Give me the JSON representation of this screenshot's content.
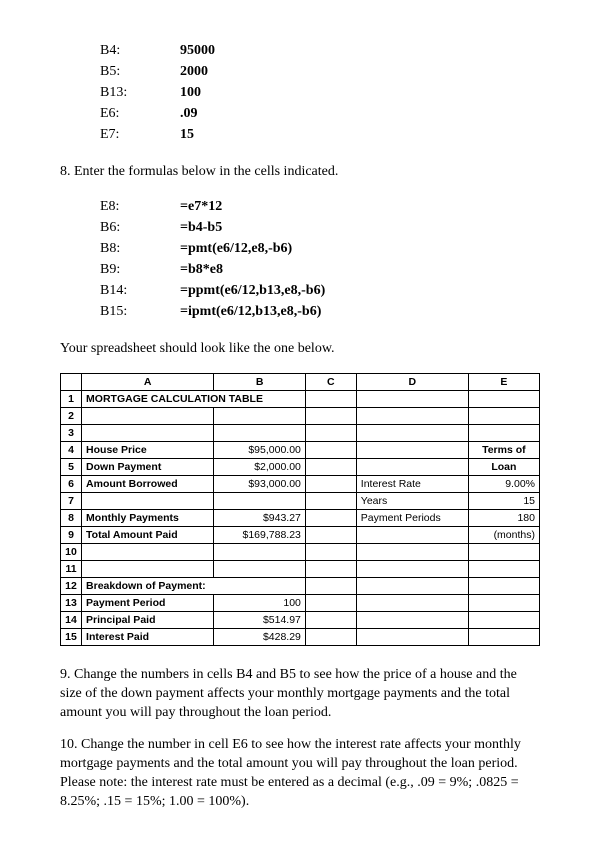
{
  "entries1": [
    {
      "label": "B4:",
      "value": "95000"
    },
    {
      "label": "B5:",
      "value": "2000"
    },
    {
      "label": "B13:",
      "value": "100"
    },
    {
      "label": "E6:",
      "value": ".09"
    },
    {
      "label": "E7:",
      "value": "15"
    }
  ],
  "step8": "8. Enter the formulas below in the cells indicated.",
  "entries2": [
    {
      "label": "E8:",
      "value": "=e7*12"
    },
    {
      "label": "B6:",
      "value": "=b4-b5"
    },
    {
      "label": "B8:",
      "value": "=pmt(e6/12,e8,-b6)"
    },
    {
      "label": "B9:",
      "value": "=b8*e8"
    },
    {
      "label": "B14:",
      "value": "=ppmt(e6/12,b13,e8,-b6)"
    },
    {
      "label": "B15:",
      "value": "=ipmt(e6/12,b13,e8,-b6)"
    }
  ],
  "lookline": "Your spreadsheet should look like the one below.",
  "sheet": {
    "headers": [
      "",
      "A",
      "B",
      "C",
      "D",
      "E"
    ],
    "rows": [
      {
        "n": "1",
        "A": "MORTGAGE CALCULATION TABLE",
        "B": "",
        "C": "",
        "D": "",
        "E": "",
        "Abold": true,
        "Aspan": 2
      },
      {
        "n": "2",
        "A": "",
        "B": "",
        "C": "",
        "D": "",
        "E": ""
      },
      {
        "n": "3",
        "A": "",
        "B": "",
        "C": "",
        "D": "",
        "E": ""
      },
      {
        "n": "4",
        "A": "House Price",
        "B": "$95,000.00",
        "C": "",
        "D": "",
        "E": "Terms of",
        "Abold": true,
        "Ebold": true,
        "Ecenter": true
      },
      {
        "n": "5",
        "A": "Down Payment",
        "B": "$2,000.00",
        "C": "",
        "D": "",
        "E": "Loan",
        "Abold": true,
        "Ebold": true,
        "Ecenter": true
      },
      {
        "n": "6",
        "A": "Amount Borrowed",
        "B": "$93,000.00",
        "C": "",
        "D": "Interest Rate",
        "E": "9.00%",
        "Abold": true
      },
      {
        "n": "7",
        "A": "",
        "B": "",
        "C": "",
        "D": "Years",
        "E": "15"
      },
      {
        "n": "8",
        "A": "Monthly Payments",
        "B": "$943.27",
        "C": "",
        "D": "Payment Periods",
        "E": "180",
        "Abold": true
      },
      {
        "n": "9",
        "A": "Total Amount Paid",
        "B": "$169,788.23",
        "C": "",
        "D": "",
        "E": "(months)",
        "Abold": true
      },
      {
        "n": "10",
        "A": "",
        "B": "",
        "C": "",
        "D": "",
        "E": ""
      },
      {
        "n": "11",
        "A": "",
        "B": "",
        "C": "",
        "D": "",
        "E": ""
      },
      {
        "n": "12",
        "A": "Breakdown of Payment:",
        "B": "",
        "C": "",
        "D": "",
        "E": "",
        "Abold": true,
        "Aspan": 2
      },
      {
        "n": "13",
        "A": "Payment Period",
        "B": "100",
        "C": "",
        "D": "",
        "E": "",
        "Abold": true
      },
      {
        "n": "14",
        "A": "Principal Paid",
        "B": "$514.97",
        "C": "",
        "D": "",
        "E": "",
        "Abold": true
      },
      {
        "n": "15",
        "A": "Interest Paid",
        "B": "$428.29",
        "C": "",
        "D": "",
        "E": "",
        "Abold": true
      }
    ]
  },
  "step9": "9. Change the numbers in cells B4 and B5 to see how the price of a house and the size of the down payment affects your monthly mortgage payments and the total amount you will pay throughout the loan period.",
  "step10": "10. Change the number in cell E6 to see how the interest rate affects your monthly mortgage payments and the total amount you will pay throughout the loan period.  Please note:  the interest rate must be entered as a decimal (e.g., .09 = 9%; .0825 = 8.25%; .15 = 15%; 1.00 = 100%)."
}
